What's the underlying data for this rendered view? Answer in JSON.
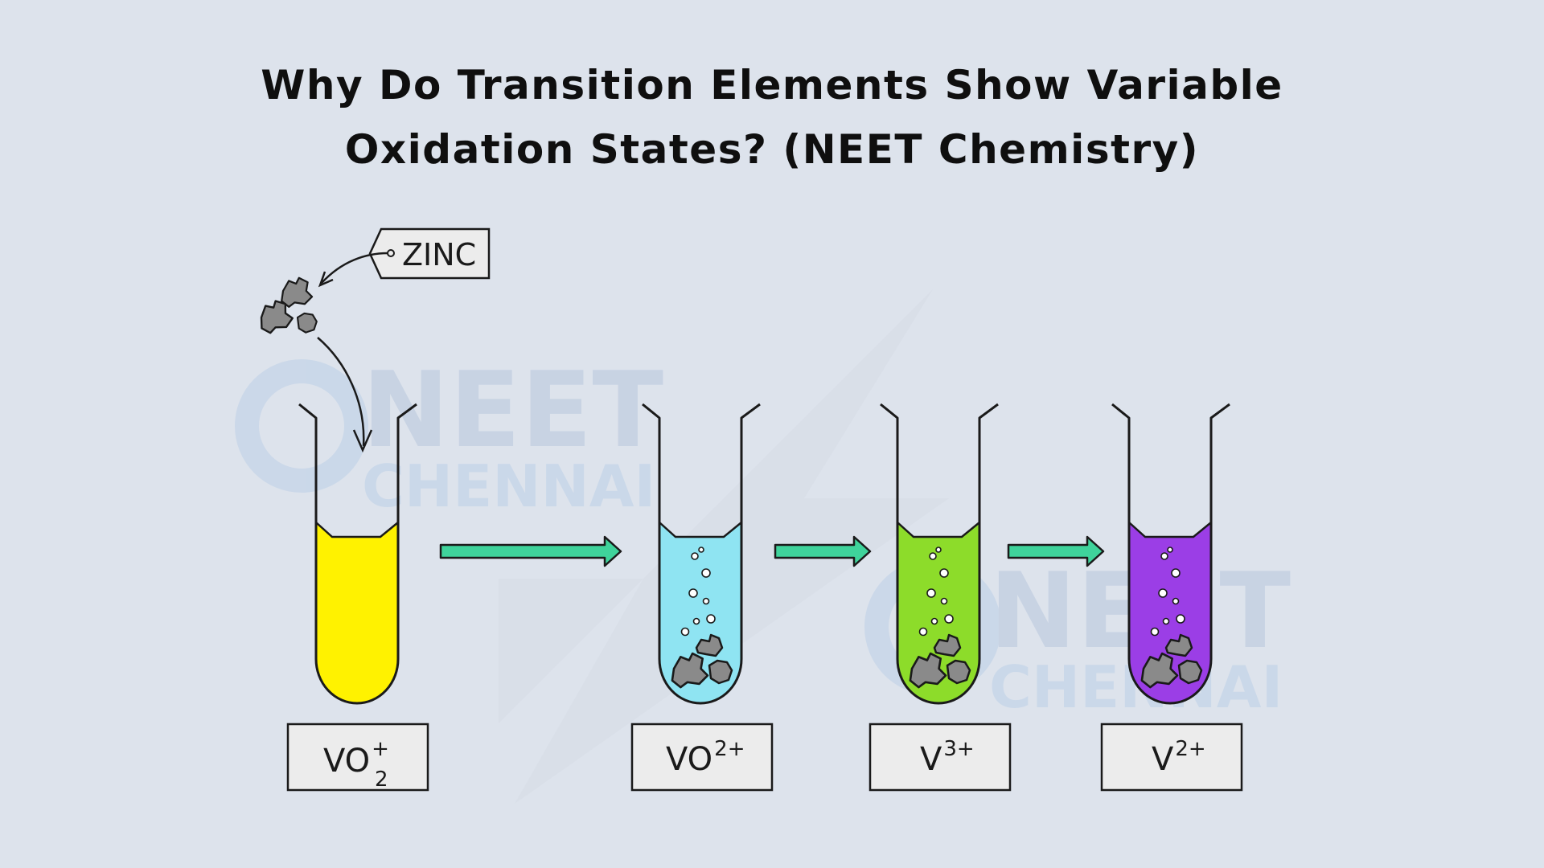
{
  "title": {
    "line1": "Why Do Transition Elements Show Variable",
    "line2": "Oxidation States? (NEET Chemistry)"
  },
  "reagent": {
    "tag_label": "ZINC"
  },
  "tubes": [
    {
      "ion_base": "VO",
      "sup": "+",
      "sub": "2",
      "color": "#fff200",
      "has_zinc": false
    },
    {
      "ion_base": "VO",
      "sup": "2+",
      "sub": "",
      "color": "#8fe4f2",
      "has_zinc": true
    },
    {
      "ion_base": "V",
      "sup": "3+",
      "sub": "",
      "color": "#8ddc2a",
      "has_zinc": true
    },
    {
      "ion_base": "V",
      "sup": "2+",
      "sub": "",
      "color": "#9b3ee6",
      "has_zinc": true
    }
  ],
  "watermark": {
    "word1": "NEET",
    "word2": "CHENNAI"
  },
  "colors": {
    "background": "#dde3ec",
    "arrow": "#3fd39b",
    "outline": "#1a1a1a",
    "zinc": "#8a8a8a"
  }
}
